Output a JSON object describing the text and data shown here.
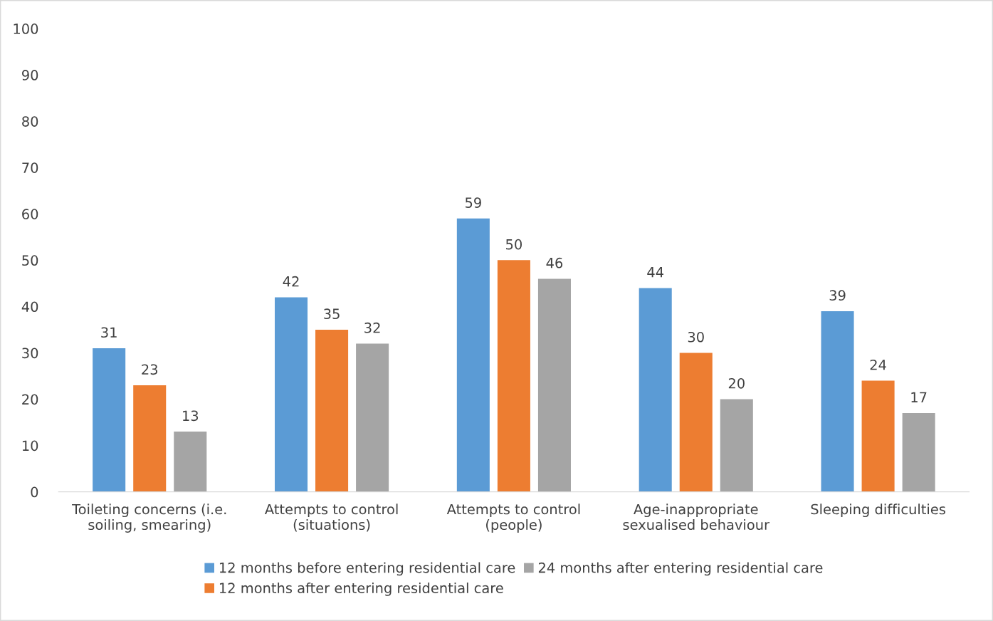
{
  "chart_data": {
    "type": "bar",
    "categories": [
      "Toileting concerns (i.e.\nsoiling, smearing)",
      "Attempts to control\n(situations)",
      "Attempts to control\n(people)",
      "Age-inappropriate\nsexualised behaviour",
      "Sleeping difficulties"
    ],
    "series": [
      {
        "name": "12 months before entering residential care",
        "color": "#5b9bd5",
        "values": [
          31,
          42,
          59,
          44,
          39
        ]
      },
      {
        "name": "12 months after entering residential care",
        "color": "#ed7d31",
        "values": [
          23,
          35,
          50,
          30,
          24
        ]
      },
      {
        "name": "24 months after entering residential care",
        "color": "#a5a5a5",
        "values": [
          13,
          32,
          46,
          20,
          17
        ]
      }
    ],
    "ylim": [
      0,
      100
    ],
    "yticks": [
      0,
      10,
      20,
      30,
      40,
      50,
      60,
      70,
      80,
      90,
      100
    ],
    "data_labels": true,
    "grid": false,
    "legend": "bottom"
  }
}
